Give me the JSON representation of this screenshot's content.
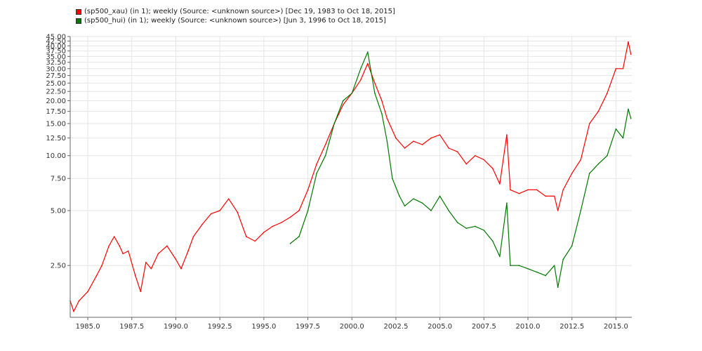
{
  "chart_data": {
    "type": "line",
    "title": "",
    "xlabel": "",
    "ylabel": "",
    "y_scale": "log",
    "grid": true,
    "legend_position": "top-left",
    "xlim": [
      1984.0,
      2015.9
    ],
    "ylim": [
      1.3,
      45.0
    ],
    "x_ticks": [
      1985.0,
      1987.5,
      1990.0,
      1992.5,
      1995.0,
      1997.5,
      2000.0,
      2002.5,
      2005.0,
      2007.5,
      2010.0,
      2012.5,
      2015.0
    ],
    "x_tick_labels": [
      "1985.0",
      "1987.5",
      "1990.0",
      "1992.5",
      "1995.0",
      "1997.5",
      "2000.0",
      "2002.5",
      "2005.0",
      "2007.5",
      "2010.0",
      "2012.5",
      "2015.0"
    ],
    "y_ticks": [
      2.5,
      5.0,
      7.5,
      10.0,
      12.5,
      15.0,
      17.5,
      20.0,
      22.5,
      25.0,
      27.5,
      30.0,
      32.5,
      35.0,
      37.5,
      40.0,
      42.5,
      45.0
    ],
    "y_tick_labels": [
      "2.50",
      "5.00",
      "7.50",
      "10.00",
      "12.50",
      "15.00",
      "17.50",
      "20.00",
      "22.50",
      "25.00",
      "27.50",
      "30.00",
      "32.50",
      "35.00",
      "37.50",
      "40.00",
      "42.50",
      "45.00"
    ],
    "series": [
      {
        "name": "(sp500_xau) (in 1); weekly (Source: <unknown source>) [Dec 19, 1983 to Oct 18, 2015]",
        "color": "#ff0000",
        "x": [
          1984.0,
          1984.2,
          1984.5,
          1985.0,
          1985.5,
          1985.8,
          1986.2,
          1986.5,
          1986.8,
          1987.0,
          1987.3,
          1987.7,
          1988.0,
          1988.3,
          1988.6,
          1989.0,
          1989.5,
          1990.0,
          1990.3,
          1990.7,
          1991.0,
          1991.5,
          1992.0,
          1992.5,
          1993.0,
          1993.5,
          1994.0,
          1994.5,
          1995.0,
          1995.5,
          1996.0,
          1996.5,
          1997.0,
          1997.5,
          1998.0,
          1998.5,
          1999.0,
          1999.5,
          2000.0,
          2000.5,
          2000.9,
          2001.3,
          2001.7,
          2002.0,
          2002.5,
          2003.0,
          2003.5,
          2004.0,
          2004.5,
          2005.0,
          2005.5,
          2006.0,
          2006.5,
          2007.0,
          2007.5,
          2008.0,
          2008.4,
          2008.8,
          2009.0,
          2009.5,
          2010.0,
          2010.5,
          2011.0,
          2011.5,
          2011.7,
          2012.0,
          2012.5,
          2013.0,
          2013.5,
          2014.0,
          2014.5,
          2015.0,
          2015.4,
          2015.7,
          2015.85
        ],
        "values": [
          1.6,
          1.4,
          1.6,
          1.8,
          2.2,
          2.5,
          3.2,
          3.6,
          3.2,
          2.9,
          3.0,
          2.2,
          1.8,
          2.6,
          2.4,
          2.9,
          3.2,
          2.7,
          2.4,
          3.0,
          3.6,
          4.2,
          4.8,
          5.0,
          5.8,
          4.9,
          3.6,
          3.4,
          3.8,
          4.1,
          4.3,
          4.6,
          5.0,
          6.5,
          9.0,
          11.5,
          15.0,
          19.0,
          22.0,
          26.0,
          32.0,
          25.0,
          20.0,
          16.0,
          12.5,
          11.0,
          12.0,
          11.5,
          12.5,
          13.0,
          11.0,
          10.5,
          9.0,
          10.0,
          9.5,
          8.5,
          7.0,
          13.0,
          6.5,
          6.2,
          6.5,
          6.5,
          6.0,
          6.0,
          5.0,
          6.5,
          8.0,
          9.5,
          15.0,
          17.5,
          22.0,
          30.0,
          30.0,
          42.0,
          36.0
        ]
      },
      {
        "name": "(sp500_hui) (in 1); weekly (Source: <unknown source>) [Jun 3, 1996 to Oct 18, 2015]",
        "color": "#007700",
        "x": [
          1996.5,
          1997.0,
          1997.5,
          1998.0,
          1998.5,
          1999.0,
          1999.5,
          2000.0,
          2000.5,
          2000.9,
          2001.3,
          2001.7,
          2002.0,
          2002.3,
          2002.7,
          2003.0,
          2003.5,
          2004.0,
          2004.5,
          2005.0,
          2005.5,
          2006.0,
          2006.5,
          2007.0,
          2007.5,
          2008.0,
          2008.4,
          2008.8,
          2009.0,
          2009.5,
          2010.0,
          2010.5,
          2011.0,
          2011.5,
          2011.7,
          2012.0,
          2012.5,
          2013.0,
          2013.5,
          2014.0,
          2014.5,
          2015.0,
          2015.4,
          2015.7,
          2015.85
        ],
        "values": [
          3.3,
          3.6,
          5.0,
          8.0,
          10.0,
          15.0,
          20.0,
          22.0,
          30.0,
          37.0,
          22.0,
          17.0,
          12.0,
          7.5,
          6.0,
          5.3,
          5.8,
          5.5,
          5.0,
          6.0,
          5.0,
          4.3,
          4.0,
          4.1,
          3.9,
          3.4,
          2.8,
          5.5,
          2.5,
          2.5,
          2.4,
          2.3,
          2.2,
          2.5,
          1.9,
          2.7,
          3.2,
          5.0,
          8.0,
          9.0,
          10.0,
          14.0,
          12.5,
          18.0,
          16.0
        ]
      }
    ]
  }
}
